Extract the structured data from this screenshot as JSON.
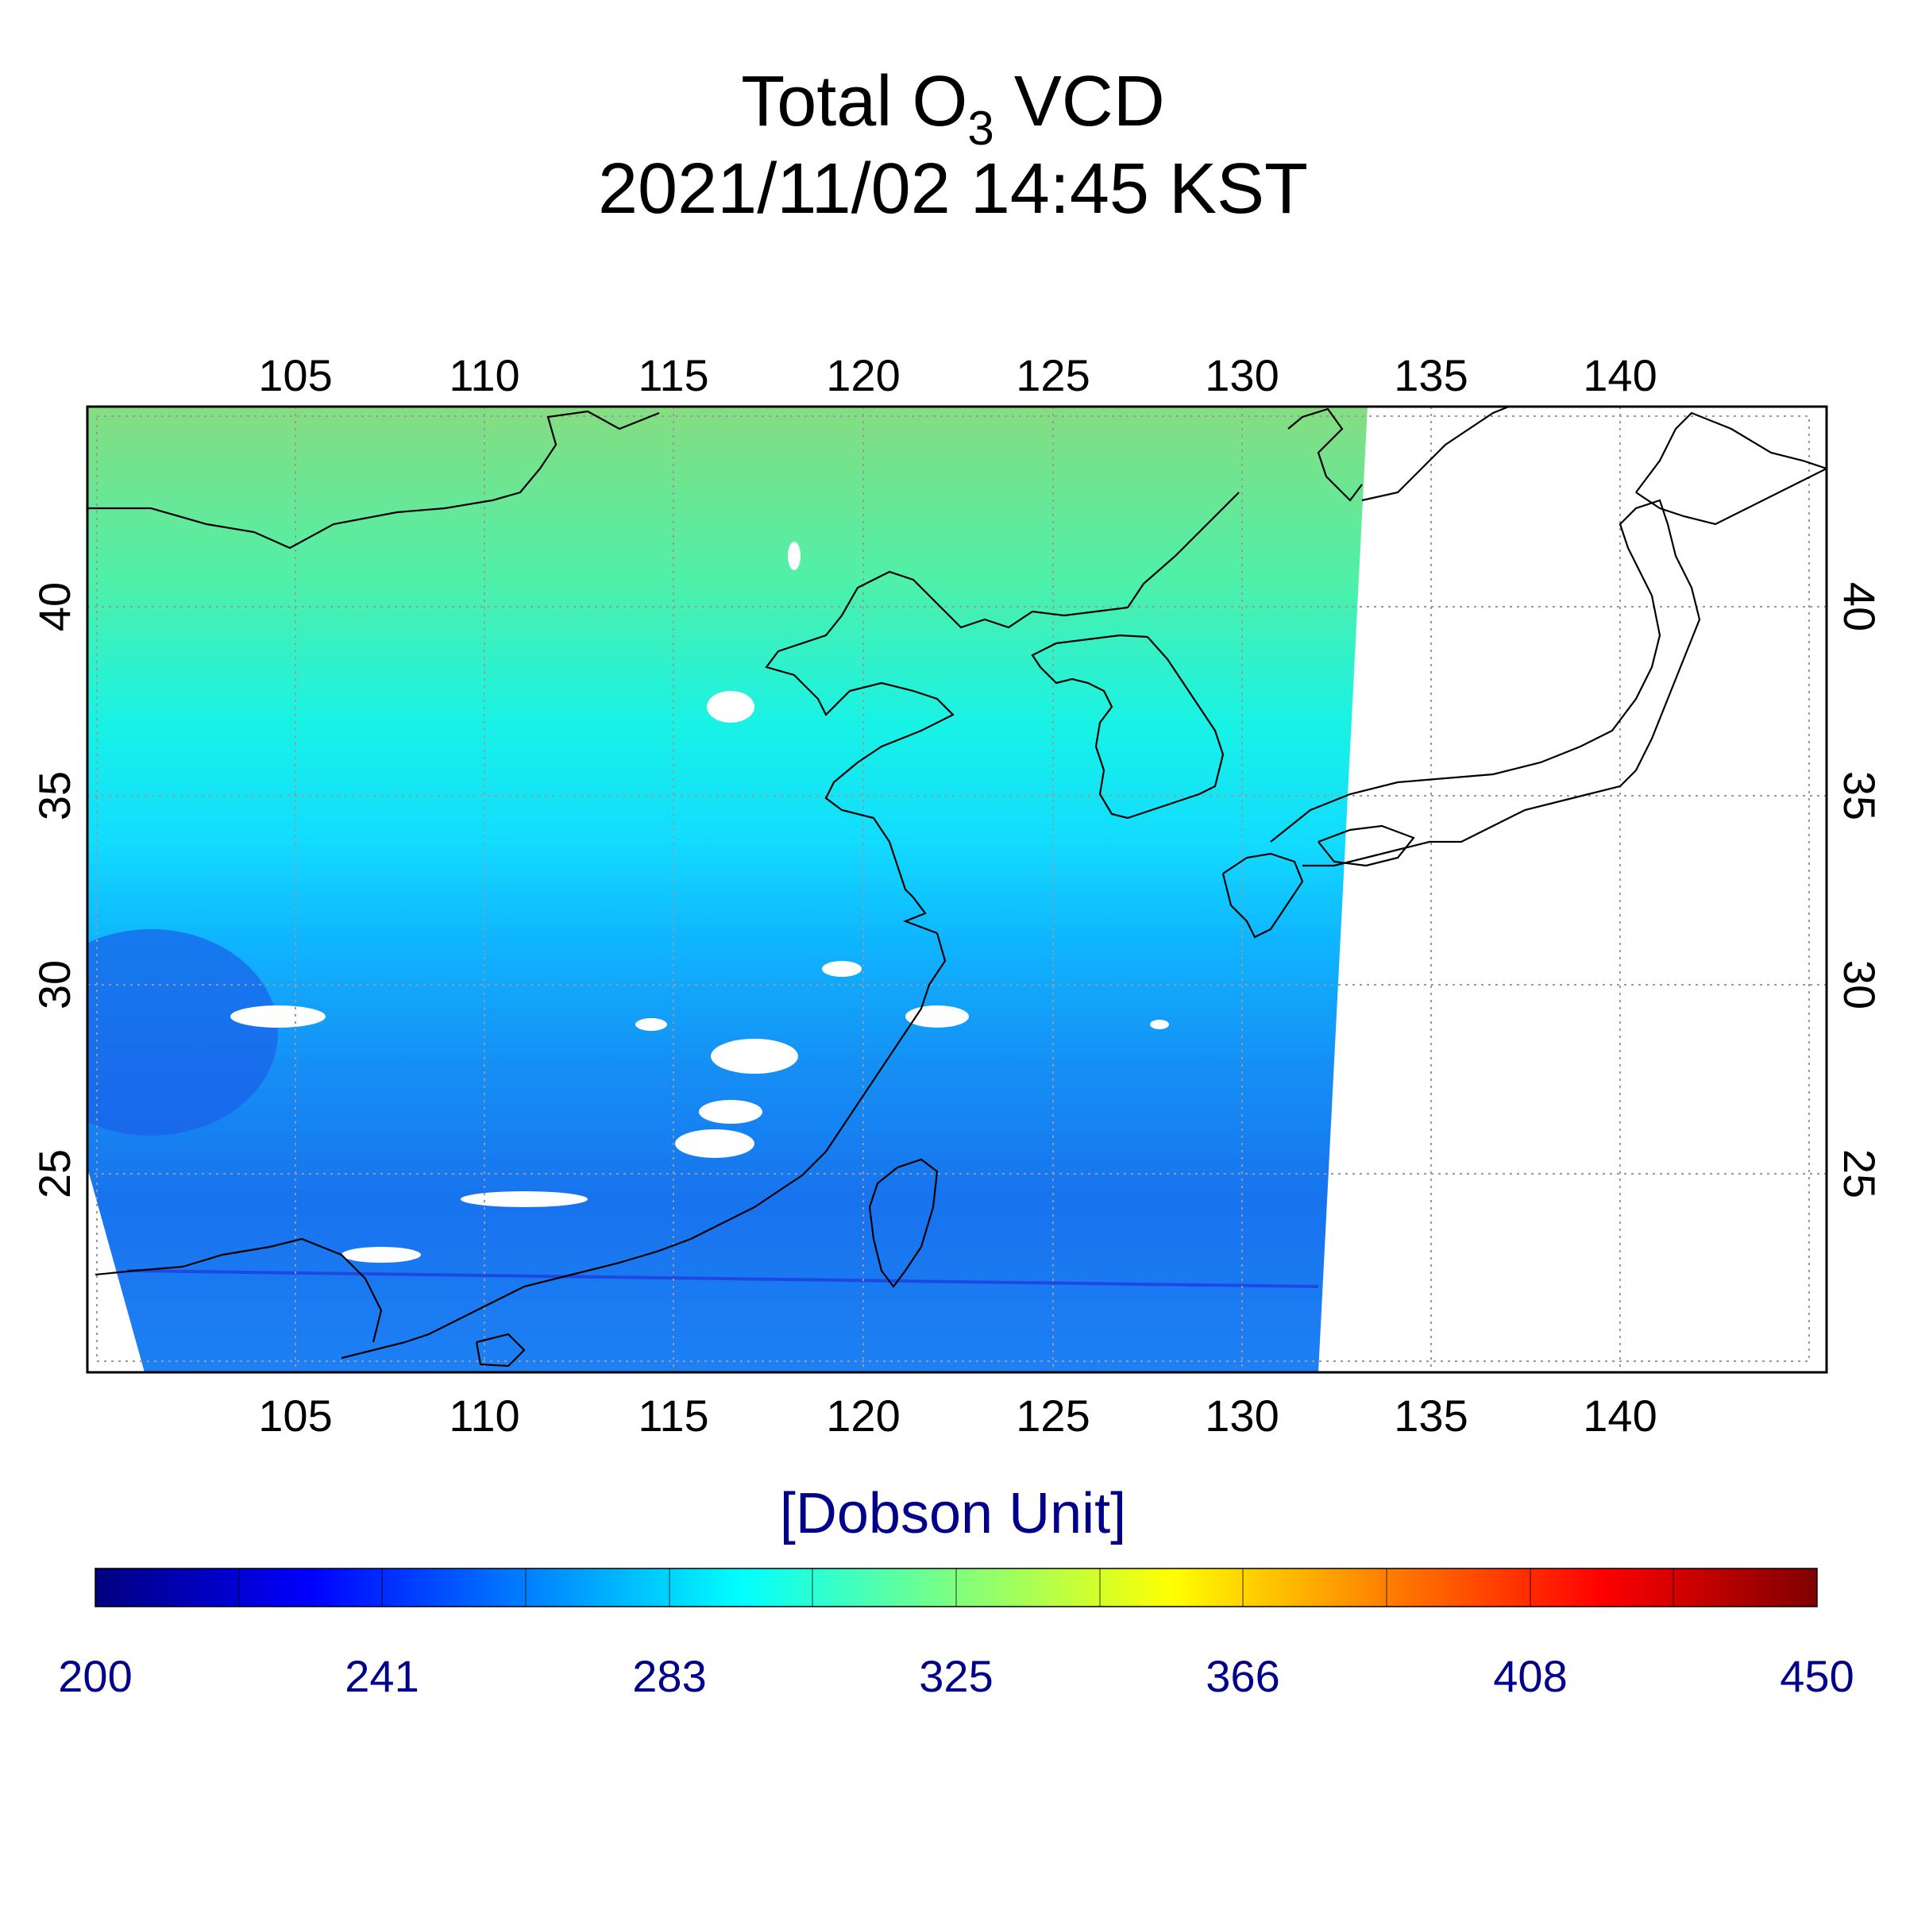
{
  "title": {
    "prefix": "Total O",
    "subscript": "3",
    "suffix": " VCD",
    "datetime": "2021/11/02 14:45 KST"
  },
  "map": {
    "lon_range": [
      100,
      146
    ],
    "lat_range": [
      20,
      45.5
    ],
    "lon_ticks": [
      "105",
      "110",
      "115",
      "120",
      "125",
      "130",
      "135",
      "140"
    ],
    "lat_ticks": [
      "25",
      "30",
      "35",
      "40"
    ],
    "grid": "dotted",
    "swath_note": "satellite swath covers western part; eastern part (Japan) blank"
  },
  "colorbar": {
    "unit_label": "[Dobson Unit]",
    "min": 200,
    "max": 450,
    "tick_labels": [
      "200",
      "241",
      "283",
      "325",
      "366",
      "408",
      "450"
    ],
    "colors": [
      "#00007f",
      "#0000ff",
      "#007fff",
      "#00ffff",
      "#7fff7f",
      "#ffff00",
      "#ff7f00",
      "#ff0000",
      "#7f0000"
    ],
    "label_color": "#00008b"
  },
  "field_colors": {
    "north": "#7ee08a",
    "north_mid": "#3cf0c8",
    "mid": "#14e6ff",
    "mid_south": "#0ab4ff",
    "south": "#1a7af0",
    "deep_south": "#2166ea"
  }
}
